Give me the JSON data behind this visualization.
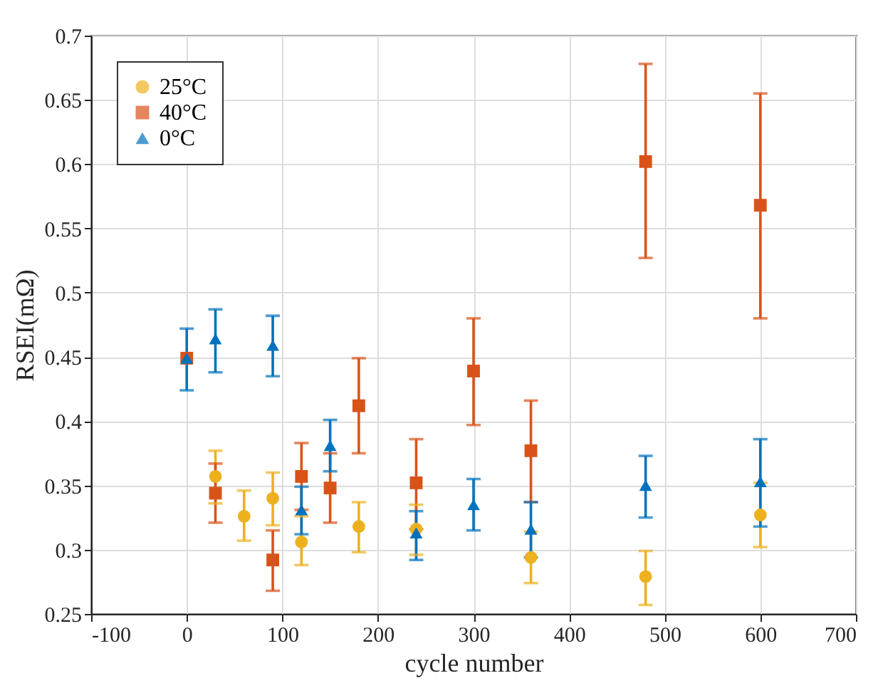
{
  "chart_data": {
    "type": "scatter",
    "xlabel": "cycle number",
    "ylabel": "RSEI(mΩ)",
    "xlim": [
      -100,
      700
    ],
    "xticks": [
      -100,
      0,
      100,
      200,
      300,
      400,
      500,
      600,
      700
    ],
    "ylim": [
      0.25,
      0.7
    ],
    "yticks": [
      0.25,
      0.3,
      0.35,
      0.4,
      0.45,
      0.5,
      0.55,
      0.6,
      0.65,
      0.7
    ],
    "grid": true,
    "legend": "top left",
    "series": [
      {
        "name": "25°C",
        "color": "#edb120",
        "marker": "circle",
        "x": [
          30,
          60,
          90,
          120,
          180,
          240,
          360,
          480,
          600
        ],
        "values": [
          0.357,
          0.326,
          0.34,
          0.306,
          0.318,
          0.316,
          0.294,
          0.279,
          0.327
        ],
        "errors": [
          [
            0.336,
            0.377
          ],
          [
            0.307,
            0.346
          ],
          [
            0.319,
            0.36
          ],
          [
            0.288,
            0.326
          ],
          [
            0.298,
            0.337
          ],
          [
            0.296,
            0.335
          ],
          [
            0.274,
            0.314
          ],
          [
            0.257,
            0.299
          ],
          [
            0.302,
            0.352
          ]
        ]
      },
      {
        "name": "40°C",
        "color": "#d95319",
        "marker": "square",
        "x": [
          0,
          30,
          90,
          120,
          150,
          180,
          240,
          300,
          360,
          480,
          600
        ],
        "values": [
          0.449,
          0.344,
          0.292,
          0.357,
          0.348,
          0.412,
          0.352,
          0.439,
          0.377,
          0.602,
          0.568
        ],
        "errors": [
          null,
          [
            0.321,
            0.367
          ],
          [
            0.268,
            0.315
          ],
          [
            0.331,
            0.383
          ],
          [
            0.321,
            0.375
          ],
          [
            0.375,
            0.449
          ],
          [
            0.316,
            0.386
          ],
          [
            0.397,
            0.48
          ],
          [
            0.337,
            0.416
          ],
          [
            0.527,
            0.678
          ],
          [
            0.48,
            0.655
          ]
        ]
      },
      {
        "name": "0°C",
        "color": "#0072bd",
        "marker": "triangle",
        "x": [
          0,
          30,
          90,
          120,
          150,
          240,
          300,
          360,
          480,
          600
        ],
        "values": [
          0.449,
          0.464,
          0.459,
          0.331,
          0.381,
          0.313,
          0.335,
          0.316,
          0.35,
          0.353
        ],
        "errors": [
          [
            0.424,
            0.472
          ],
          [
            0.438,
            0.487
          ],
          [
            0.435,
            0.482
          ],
          [
            0.312,
            0.349
          ],
          [
            0.361,
            0.401
          ],
          [
            0.292,
            0.33
          ],
          [
            0.315,
            0.355
          ],
          [
            0.294,
            0.337
          ],
          [
            0.325,
            0.373
          ],
          [
            0.318,
            0.386
          ]
        ]
      }
    ]
  }
}
